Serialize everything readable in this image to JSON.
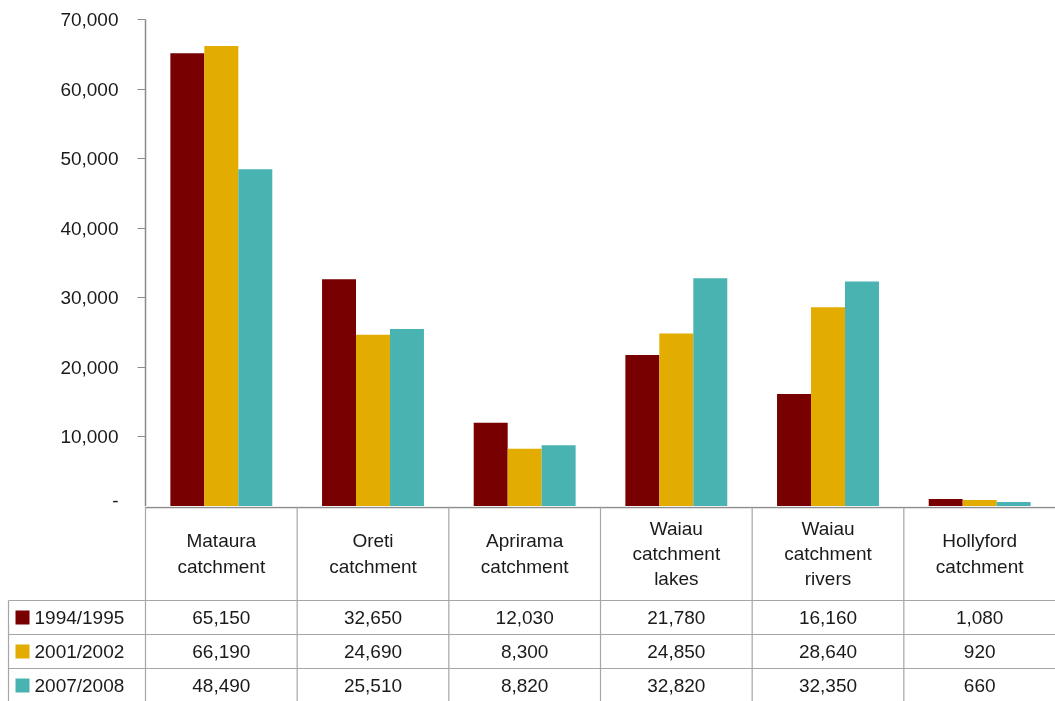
{
  "chart_data": {
    "type": "bar",
    "categories": [
      "Mataura catchment",
      "Oreti catchment",
      "Aprirama catchment",
      "Waiau catchment lakes",
      "Waiau catchment rivers",
      "Hollyford catchment"
    ],
    "series": [
      {
        "name": "1994/1995",
        "color": "#780000",
        "values": [
          65150,
          32650,
          12030,
          21780,
          16160,
          1080
        ],
        "value_labels": [
          "65,150",
          "32,650",
          "12,030",
          "21,780",
          "16,160",
          "1,080"
        ]
      },
      {
        "name": "2001/2002",
        "color": "#e2ac00",
        "values": [
          66190,
          24690,
          8300,
          24850,
          28640,
          920
        ],
        "value_labels": [
          "66,190",
          "24,690",
          "8,300",
          "24,850",
          "28,640",
          "920"
        ]
      },
      {
        "name": "2007/2008",
        "color": "#48b3b1",
        "values": [
          48490,
          25510,
          8820,
          32820,
          32350,
          660
        ],
        "value_labels": [
          "48,490",
          "25,510",
          "8,820",
          "32,820",
          "32,350",
          "660"
        ]
      }
    ],
    "ylim": [
      0,
      70000
    ],
    "yticks": [
      {
        "value": 0,
        "label": "-"
      },
      {
        "value": 10000,
        "label": "10,000"
      },
      {
        "value": 20000,
        "label": "20,000"
      },
      {
        "value": 30000,
        "label": "30,000"
      },
      {
        "value": 40000,
        "label": "40,000"
      },
      {
        "value": 50000,
        "label": "50,000"
      },
      {
        "value": 60000,
        "label": "60,000"
      },
      {
        "value": 70000,
        "label": "70,000"
      }
    ],
    "legend": "bottom left"
  }
}
